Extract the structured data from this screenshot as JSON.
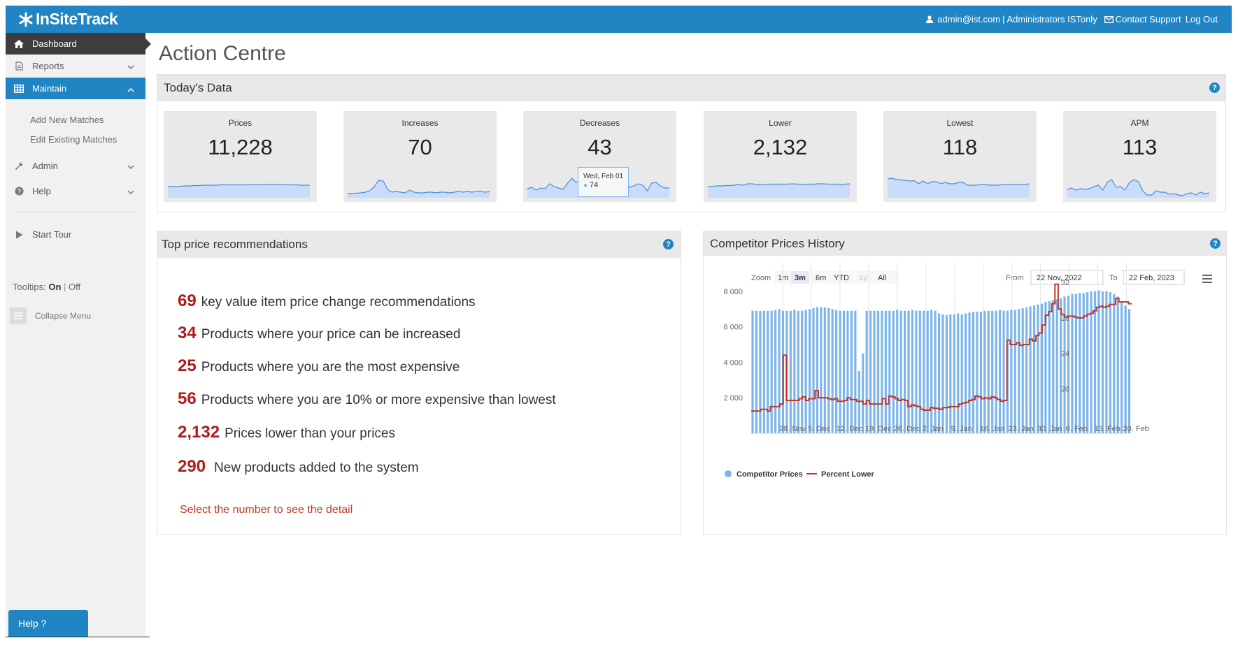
{
  "header": {
    "logo_text": "InSiteTrack",
    "user": "admin@ist.com",
    "separator": "|",
    "account": "Administrators ISTonly",
    "contact": "Contact Support",
    "logout": "Log Out"
  },
  "sidebar": {
    "dashboard": "Dashboard",
    "reports": "Reports",
    "maintain": "Maintain",
    "maintain_sub": [
      "Add New Matches",
      "Edit Existing Matches"
    ],
    "admin": "Admin",
    "help": "Help",
    "start_tour": "Start Tour",
    "tooltips_label": "Tooltips:",
    "tooltips_on": "On",
    "tooltips_sep": "|",
    "tooltips_off": "Off",
    "collapse": "Collapse Menu",
    "help_button": "Help ?"
  },
  "page": {
    "title": "Action Centre"
  },
  "todays_data": {
    "title": "Today's Data",
    "stats": [
      {
        "label": "Prices",
        "value": "11,228"
      },
      {
        "label": "Increases",
        "value": "70"
      },
      {
        "label": "Decreases",
        "value": "43"
      },
      {
        "label": "Lower",
        "value": "2,132"
      },
      {
        "label": "Lowest",
        "value": "118"
      },
      {
        "label": "APM",
        "value": "113"
      }
    ],
    "tooltip": {
      "date": "Wed, Feb 01",
      "value": "74"
    }
  },
  "recommendations": {
    "title": "Top price recommendations",
    "items": [
      {
        "number": "69",
        "text": "key value item price change recommendations"
      },
      {
        "number": "34",
        "text": "Products where your price can be increased"
      },
      {
        "number": "25",
        "text": "Products where you are the most expensive"
      },
      {
        "number": "56",
        "text": "Products where you are 10% or more expensive than lowest"
      },
      {
        "number": "2,132",
        "text": "Prices lower than your prices"
      },
      {
        "number": "290",
        "text": "New products added to the system"
      }
    ],
    "note": "Select the number to see the detail"
  },
  "competitor_chart": {
    "title": "Competitor Prices History",
    "zoom_label": "Zoom",
    "zoom_options": [
      "1m",
      "3m",
      "6m",
      "YTD",
      "1y",
      "All"
    ],
    "zoom_selected": "3m",
    "zoom_disabled": "1y",
    "from_label": "From",
    "from_value": "22 Nov, 2022",
    "to_label": "To",
    "to_value": "22 Feb, 2023",
    "colors": {
      "bars": "#7cb5ec",
      "line": "#c0392b"
    }
  },
  "chart_data": {
    "type": "bar",
    "title": "Competitor Prices History",
    "x_ticks": [
      "28. Nov",
      "5. Dec",
      "12. Dec",
      "19. Dec",
      "26. Dec",
      "2. Jan",
      "9. Jan",
      "16. Jan",
      "23. Jan",
      "30. Jan",
      "6. Feb",
      "13. Feb",
      "20. Feb"
    ],
    "y_left_ticks": [
      "2 000",
      "4 000",
      "6 000",
      "8 000"
    ],
    "y_right_ticks": [
      "20",
      "24",
      "28",
      "32"
    ],
    "y_left_range": [
      0,
      10000
    ],
    "y_right_range": [
      15,
      35
    ],
    "grid": true,
    "legend": "bottom-left",
    "x_range": [
      "2022-11-22",
      "2023-02-21"
    ],
    "series": [
      {
        "name": "Competitor Prices",
        "type": "column",
        "axis": "left",
        "values": [
          6900,
          6900,
          6900,
          6900,
          6900,
          6900,
          6950,
          7000,
          6900,
          6900,
          6900,
          6950,
          6900,
          6900,
          6950,
          7000,
          7050,
          7100,
          7100,
          7100,
          7050,
          7000,
          6950,
          6900,
          6900,
          6900,
          6900,
          6900,
          3500,
          4500,
          6900,
          6900,
          6900,
          6900,
          6900,
          6900,
          6900,
          6900,
          6950,
          6900,
          6900,
          6900,
          6950,
          6900,
          6900,
          6900,
          6900,
          6950,
          6900,
          6750,
          6700,
          6650,
          6700,
          6700,
          6750,
          6700,
          6750,
          6800,
          6850,
          6850,
          6850,
          6900,
          6900,
          6900,
          6900,
          6950,
          6900,
          6900,
          6950,
          6950,
          7000,
          7050,
          7100,
          7150,
          7200,
          7250,
          7300,
          7400,
          7450,
          7500,
          7550,
          7600,
          7700,
          7750,
          7850,
          7850,
          7900,
          7900,
          7950,
          8000,
          8000,
          8050,
          8000,
          8000,
          7950,
          7850,
          7700,
          7400,
          7200,
          7000
        ]
      },
      {
        "name": "Percent Lower",
        "type": "line",
        "axis": "right",
        "values": [
          17.5,
          17.5,
          17.5,
          17.7,
          17.7,
          17.5,
          18.0,
          18.0,
          18.0,
          18.3,
          23.8,
          18.7,
          18.7,
          18.7,
          18.7,
          18.9,
          19.1,
          18.7,
          18.9,
          18.9,
          19.8,
          19.0,
          19.0,
          19.0,
          18.9,
          18.8,
          18.9,
          18.6,
          18.6,
          18.7,
          19.0,
          18.8,
          18.8,
          18.6,
          18.6,
          18.3,
          18.7,
          18.3,
          18.3,
          18.3,
          18.3,
          18.9,
          18.3,
          19.2,
          19.1,
          18.9,
          18.7,
          18.8,
          18.7,
          18.0,
          18.2,
          18.1,
          18.0,
          17.7,
          17.6,
          17.6,
          17.9,
          17.8,
          17.8,
          17.7,
          17.9,
          17.9,
          18.0,
          18.0,
          18.0,
          18.3,
          18.4,
          18.5,
          18.7,
          18.8,
          19.2,
          19.1,
          18.9,
          19.0,
          18.9,
          19.1,
          19.0,
          18.8,
          18.6,
          18.7,
          25.5,
          25.0,
          25.0,
          25.2,
          24.9,
          25.0,
          25.0,
          25.6,
          25.4,
          26.0,
          26.3,
          27.2,
          28.3,
          28.7,
          29.6,
          31.8,
          29.0,
          28.4,
          28.1,
          28.2,
          28.2,
          28.1,
          28.0,
          28.0,
          28.2,
          28.4,
          28.5,
          28.8,
          29.2,
          29.3,
          29.2,
          29.3,
          29.5,
          29.5,
          30.2,
          29.8,
          29.8,
          29.8,
          29.6
        ]
      }
    ]
  },
  "sparklines": {
    "prices": [
      44,
      44,
      44,
      43.5,
      43,
      43,
      42.5,
      42.5,
      42,
      42,
      42,
      42,
      41.5,
      41.5,
      41.5,
      41.5,
      41.5,
      41.5,
      41.5,
      41,
      41.2,
      41,
      41,
      41,
      41,
      41,
      41.2,
      41.5,
      41.5,
      41.5,
      42,
      42,
      42
    ],
    "increases": [
      54,
      54,
      53.5,
      53,
      52,
      50,
      44,
      35,
      36,
      48,
      52,
      51,
      52,
      53,
      49,
      52,
      53,
      53,
      52,
      52,
      53,
      52,
      52,
      53,
      52,
      51,
      52,
      51,
      52,
      51,
      51,
      52,
      51
    ],
    "decreases": [
      47,
      45,
      49,
      46,
      47,
      40,
      44,
      46,
      48,
      40,
      32,
      38,
      36,
      35,
      33,
      34,
      40,
      42,
      44,
      40,
      37,
      43,
      36,
      45,
      43,
      40,
      42,
      50,
      39,
      38,
      43,
      46,
      46
    ],
    "lower": [
      44,
      44,
      43,
      43,
      42.5,
      42.5,
      42,
      41,
      42,
      40,
      40,
      41,
      41,
      41,
      40.5,
      40.5,
      40.5,
      40.5,
      40.5,
      40,
      40.5,
      40.5,
      41,
      40.5,
      40.5,
      40,
      40,
      40.5,
      40.5,
      40.5,
      41,
      40.5,
      40
    ],
    "lowest": [
      33,
      32,
      34,
      34.5,
      35,
      36,
      35.5,
      40,
      36,
      40,
      37,
      37,
      40,
      38,
      40,
      40,
      38,
      38,
      42,
      42,
      42,
      41,
      41,
      42,
      42,
      42,
      41,
      41,
      41,
      41,
      41,
      41,
      40
    ],
    "apm": [
      48,
      46,
      49,
      47,
      48,
      47,
      44,
      42,
      49,
      38,
      34,
      45,
      44,
      49,
      38,
      34,
      37,
      50,
      56,
      56,
      50,
      52,
      52,
      55,
      54,
      56,
      57,
      54,
      53,
      56,
      52,
      54,
      53
    ]
  }
}
